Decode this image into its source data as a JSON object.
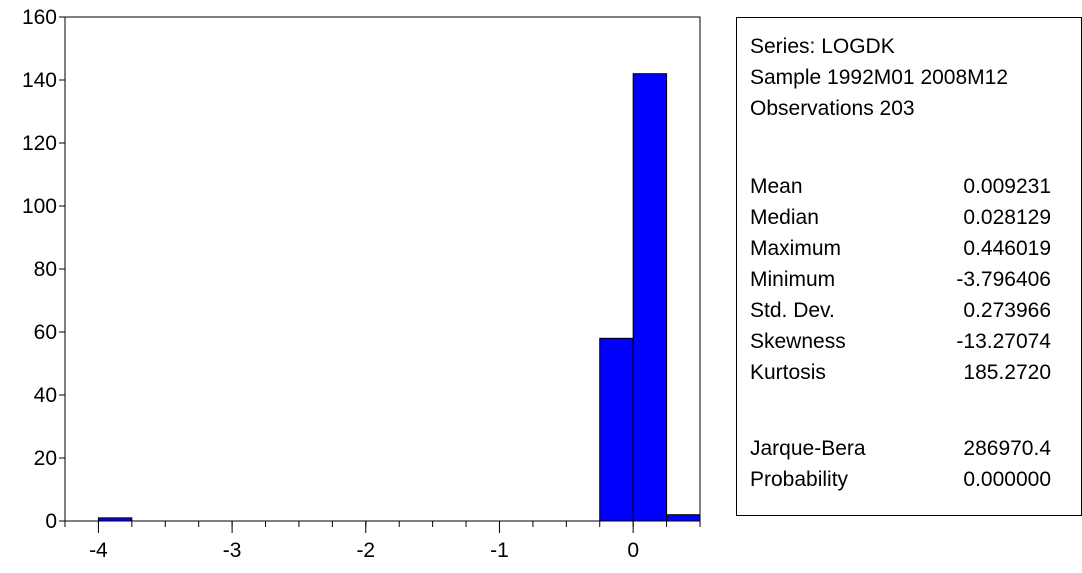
{
  "chart_data": {
    "type": "bar",
    "title": "",
    "xlabel": "",
    "ylabel": "",
    "xlim": [
      -4.25,
      0.5
    ],
    "ylim": [
      0,
      160
    ],
    "bin_width": 0.25,
    "bins": [
      {
        "x0": -4.0,
        "x1": -3.75,
        "count": 1
      },
      {
        "x0": -0.25,
        "x1": 0.0,
        "count": 58
      },
      {
        "x0": 0.0,
        "x1": 0.25,
        "count": 142
      },
      {
        "x0": 0.25,
        "x1": 0.5,
        "count": 2
      }
    ],
    "x_ticks": [
      "-4",
      "-3",
      "-2",
      "-1",
      "0"
    ],
    "x_tick_values": [
      -4,
      -3,
      -2,
      -1,
      0
    ],
    "y_ticks": [
      "0",
      "20",
      "40",
      "60",
      "80",
      "100",
      "120",
      "140",
      "160"
    ],
    "y_tick_values": [
      0,
      20,
      40,
      60,
      80,
      100,
      120,
      140,
      160
    ],
    "bar_color": "#0000ff",
    "grid": false
  },
  "stats": {
    "series": "Series: LOGDK",
    "sample": "Sample 1992M01 2008M12",
    "observations": "Observations 203",
    "rows": [
      {
        "label": "Mean",
        "value": "0.009231"
      },
      {
        "label": "Median",
        "value": "0.028129"
      },
      {
        "label": "Maximum",
        "value": "0.446019"
      },
      {
        "label": "Minimum",
        "value": "-3.796406"
      },
      {
        "label": "Std. Dev.",
        "value": "0.273966"
      },
      {
        "label": "Skewness",
        "value": "-13.27074"
      },
      {
        "label": "Kurtosis",
        "value": "185.2720"
      }
    ],
    "tests": [
      {
        "label": "Jarque-Bera",
        "value": "286970.4"
      },
      {
        "label": "Probability",
        "value": "0.000000"
      }
    ]
  }
}
